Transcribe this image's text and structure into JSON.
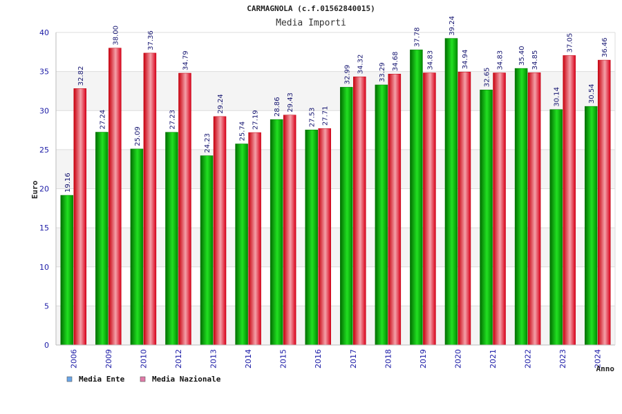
{
  "chart_data": {
    "type": "bar",
    "title": "CARMAGNOLA (c.f.01562840015)",
    "subtitle": "Media Importi",
    "xlabel": "Anno",
    "ylabel": "Euro",
    "ylim": [
      0,
      40
    ],
    "yticks": [
      0,
      5,
      10,
      15,
      20,
      25,
      30,
      35,
      40
    ],
    "grid": true,
    "legend_position": "bottom-left",
    "categories": [
      "2006",
      "2009",
      "2010",
      "2012",
      "2013",
      "2014",
      "2015",
      "2016",
      "2017",
      "2018",
      "2019",
      "2020",
      "2021",
      "2022",
      "2023",
      "2024"
    ],
    "series": [
      {
        "name": "Media Ente",
        "color": "#00c000",
        "legend_color": "#6aa6e8",
        "values": [
          19.16,
          27.24,
          25.09,
          27.23,
          24.23,
          25.74,
          28.86,
          27.53,
          32.99,
          33.29,
          37.78,
          39.24,
          32.65,
          35.4,
          30.14,
          30.54
        ],
        "labels": [
          "19.16",
          "27.24",
          "25.09",
          "27.23",
          "24.23",
          "25.74",
          "28.86",
          "27.53",
          "32.99",
          "33.29",
          "37.78",
          "39.24",
          "32.65",
          "35.40",
          "30.14",
          "30.54"
        ]
      },
      {
        "name": "Media Nazionale",
        "color": "#e81020",
        "legend_color": "#e07aa8",
        "values": [
          32.82,
          38.0,
          37.36,
          34.79,
          29.24,
          27.19,
          29.43,
          27.71,
          34.32,
          34.68,
          34.83,
          34.94,
          34.83,
          34.85,
          37.05,
          36.46
        ],
        "labels": [
          "32.82",
          "38.00",
          "37.36",
          "34.79",
          "29.24",
          "27.19",
          "29.43",
          "27.71",
          "34.32",
          "34.68",
          "34.83",
          "34.94",
          "34.83",
          "34.85",
          "37.05",
          "36.46"
        ]
      }
    ]
  }
}
